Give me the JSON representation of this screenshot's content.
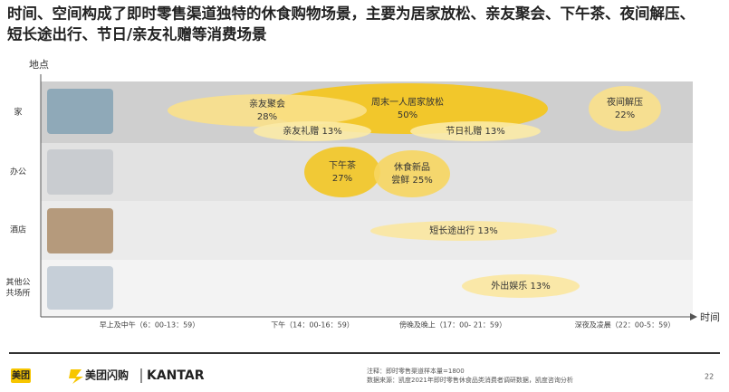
{
  "title": [
    "时间、空间构成了即时零售渠道独特的休食购物场景，主要为居家放松、亲友聚会、下午茶、夜间解压、",
    "短长途出行、节日/亲友礼赠等消费场景"
  ],
  "y_axis_label": "地点",
  "x_axis_label": "时间",
  "rows": [
    [
      "家"
    ],
    [
      "办公"
    ],
    [
      "酒店"
    ],
    [
      "其他公",
      "共场所"
    ]
  ],
  "time_labels": [
    "早上及中午（6：00-13：59）",
    "下午（14：00-16：59）",
    "傍晚及晚上（17：00- 21：59）",
    "深夜及凌晨（22：00-5：59）"
  ],
  "scenes": [
    {
      "lines": [
        "周末一人居家放松",
        "50%"
      ]
    },
    {
      "lines": [
        "亲友聚会",
        "28%"
      ]
    },
    {
      "lines": [
        "亲友礼赠 13%"
      ]
    },
    {
      "lines": [
        "节日礼赠 13%"
      ]
    },
    {
      "lines": [
        "夜间解压",
        "22%"
      ]
    },
    {
      "lines": [
        "下午茶",
        "27%"
      ]
    },
    {
      "lines": [
        "休食新品",
        "尝鲜 25%"
      ]
    },
    {
      "lines": [
        "短长途出行 13%"
      ]
    },
    {
      "lines": [
        "外出娱乐 13%"
      ]
    }
  ],
  "footer": {
    "brands": [
      "美团",
      "美团闪购",
      "KANTAR"
    ],
    "note": "注释：即时零售渠道样本量=1800",
    "source": "数据来源：凯度2021年即时零售休食品类消费者调研数据，凯度咨询分析",
    "page": "22"
  }
}
